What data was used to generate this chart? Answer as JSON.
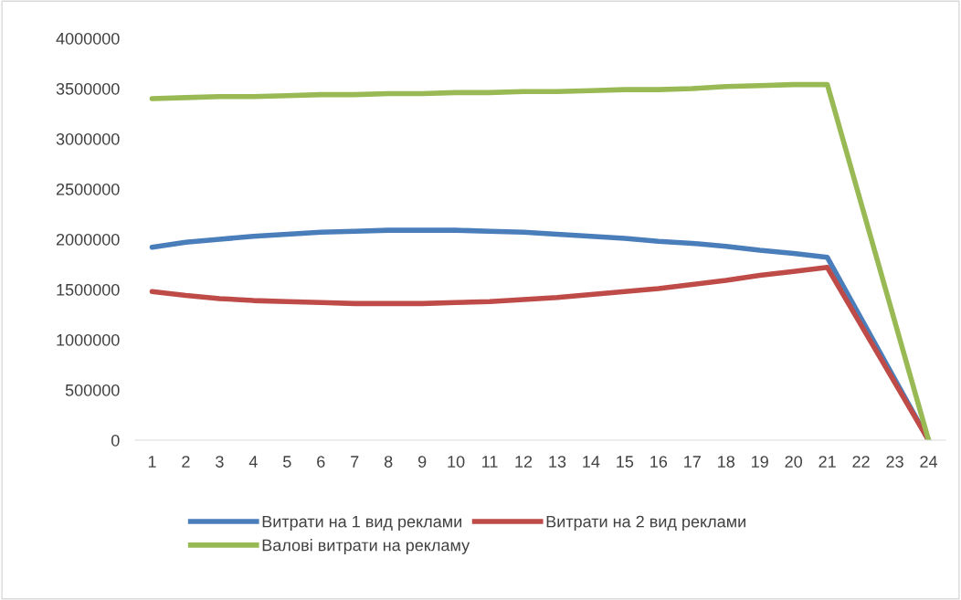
{
  "chart_data": {
    "type": "line",
    "x": [
      1,
      2,
      3,
      4,
      5,
      6,
      7,
      8,
      9,
      10,
      11,
      12,
      13,
      14,
      15,
      16,
      17,
      18,
      19,
      20,
      21,
      24
    ],
    "series": [
      {
        "name": "Витрати на 1 вид реклами",
        "color": "#4a7ebb",
        "values": [
          1920000,
          1970000,
          2000000,
          2030000,
          2050000,
          2070000,
          2080000,
          2090000,
          2090000,
          2090000,
          2080000,
          2070000,
          2050000,
          2030000,
          2010000,
          1980000,
          1960000,
          1930000,
          1890000,
          1860000,
          1820000,
          0
        ]
      },
      {
        "name": "Витрати на 2 вид реклами",
        "color": "#be4b48",
        "values": [
          1480000,
          1440000,
          1410000,
          1390000,
          1380000,
          1370000,
          1360000,
          1360000,
          1360000,
          1370000,
          1380000,
          1400000,
          1420000,
          1450000,
          1480000,
          1510000,
          1550000,
          1590000,
          1640000,
          1680000,
          1720000,
          0
        ]
      },
      {
        "name": "Валові витрати на рекламу",
        "color": "#98b954",
        "values": [
          3400000,
          3410000,
          3420000,
          3420000,
          3430000,
          3440000,
          3440000,
          3450000,
          3450000,
          3460000,
          3460000,
          3470000,
          3470000,
          3480000,
          3490000,
          3490000,
          3500000,
          3520000,
          3530000,
          3540000,
          3540000,
          0
        ]
      }
    ],
    "xlim": [
      0.5,
      24.5
    ],
    "xticks": [
      1,
      2,
      3,
      4,
      5,
      6,
      7,
      8,
      9,
      10,
      11,
      12,
      13,
      14,
      15,
      16,
      17,
      18,
      19,
      20,
      21,
      22,
      23,
      24
    ],
    "ylim": [
      0,
      4000000
    ],
    "yticks": [
      0,
      500000,
      1000000,
      1500000,
      2000000,
      2500000,
      3000000,
      3500000,
      4000000
    ],
    "grid": false,
    "legend": "bottom",
    "marker": "none",
    "line_style": "solid"
  }
}
